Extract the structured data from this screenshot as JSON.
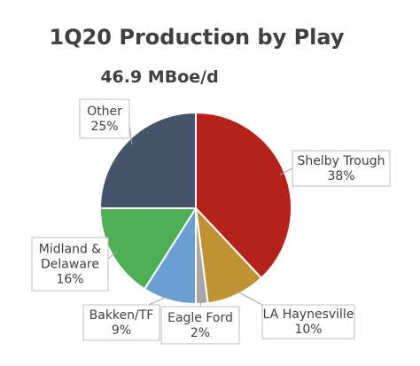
{
  "chart_data": {
    "type": "pie",
    "title": "1Q20 Production by Play",
    "subtitle": "46.9 MBoe/d",
    "slices": [
      {
        "label": "Shelby Trough",
        "value": 38,
        "value_label": "38%",
        "color": "#b5221b"
      },
      {
        "label": "LA Haynesville",
        "value": 10,
        "value_label": "10%",
        "color": "#bf9333"
      },
      {
        "label": "Eagle Ford",
        "value": 2,
        "value_label": "2%",
        "color": "#a6a6a6"
      },
      {
        "label": "Bakken/TF",
        "value": 9,
        "value_label": "9%",
        "color": "#6b9fd4"
      },
      {
        "label": "Midland & Delaware",
        "value": 16,
        "value_label": "16%",
        "color": "#4cae55"
      },
      {
        "label": "Other",
        "value": 25,
        "value_label": "25%",
        "color": "#44546a"
      }
    ]
  }
}
